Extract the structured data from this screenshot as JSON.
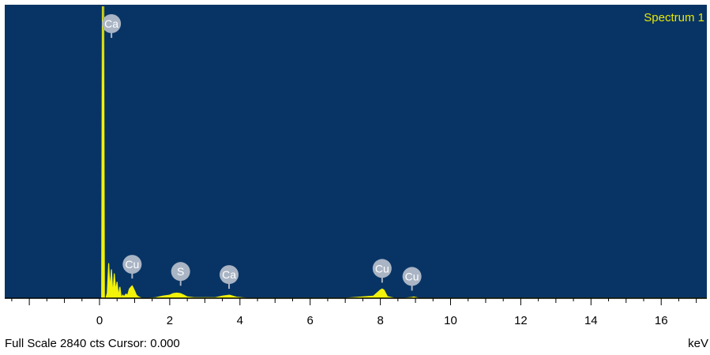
{
  "colors": {
    "plot_bg": "#083465",
    "trace": "#f2f20a",
    "marker": "#a9b4c4",
    "title": "#e8e800"
  },
  "chart_data": {
    "type": "area",
    "title": "Spectrum 1",
    "xlabel": "keV",
    "ylabel": "",
    "xlim": [
      -2.7,
      17.3
    ],
    "ylim": [
      0,
      2840
    ],
    "x_ticks": [
      0,
      2,
      4,
      6,
      8,
      10,
      12,
      14,
      16
    ],
    "legend": "none",
    "grid": false,
    "series": [
      {
        "x": [
          0.06,
          0.08,
          0.1,
          0.12,
          0.14,
          0.18,
          0.22,
          0.26,
          0.3,
          0.34,
          0.38,
          0.42,
          0.46,
          0.5,
          0.54,
          0.58,
          0.62,
          0.66,
          0.7,
          0.75,
          0.8,
          0.85,
          0.9,
          0.93,
          0.96,
          1.0,
          1.05,
          1.1,
          1.2,
          1.4,
          1.6,
          1.8,
          2.0,
          2.1,
          2.2,
          2.3,
          2.4,
          2.5,
          2.7,
          3.0,
          3.3,
          3.5,
          3.7,
          3.9,
          4.2,
          5.0,
          6.0,
          7.0,
          7.8,
          8.0,
          8.05,
          8.1,
          8.2,
          8.4,
          8.7,
          8.9,
          8.95,
          9.0,
          9.1,
          9.5,
          10.5,
          12.0,
          14.0,
          16.0,
          17.3
        ],
        "y": [
          0,
          2840,
          0,
          2840,
          0,
          0,
          50,
          340,
          80,
          280,
          30,
          240,
          70,
          160,
          20,
          110,
          0,
          30,
          15,
          40,
          30,
          90,
          110,
          120,
          100,
          70,
          30,
          15,
          0,
          0,
          5,
          20,
          30,
          45,
          50,
          45,
          30,
          12,
          5,
          5,
          5,
          20,
          30,
          10,
          0,
          0,
          0,
          0,
          20,
          80,
          90,
          80,
          15,
          0,
          0,
          8,
          12,
          8,
          0,
          0,
          0,
          0,
          0,
          0,
          0
        ]
      }
    ],
    "peak_labels": [
      {
        "label": "Ca",
        "x": 0.34,
        "y": 2600
      },
      {
        "label": "Cu",
        "x": 0.93,
        "y": 130
      },
      {
        "label": "S",
        "x": 2.31,
        "y": 60
      },
      {
        "label": "Ca",
        "x": 3.69,
        "y": 30
      },
      {
        "label": "Cu",
        "x": 8.05,
        "y": 90
      },
      {
        "label": "Cu",
        "x": 8.9,
        "y": 12
      }
    ]
  },
  "status": {
    "text": "Full Scale 2840 cts Cursor: 0.000",
    "unit": "keV"
  }
}
